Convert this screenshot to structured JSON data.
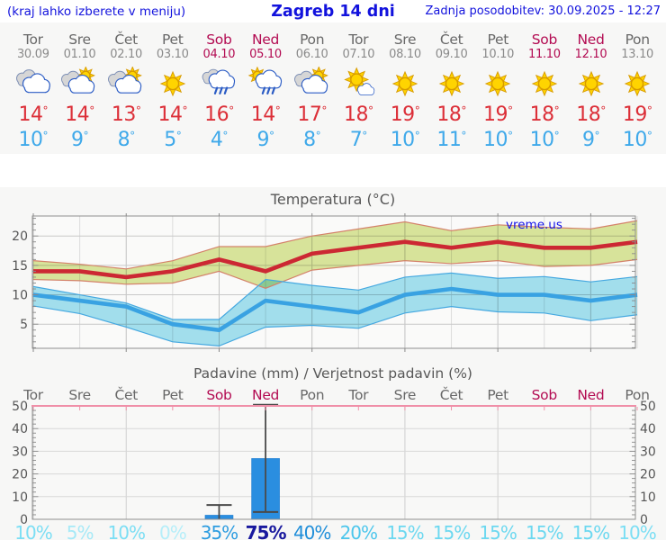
{
  "header": {
    "left_note": "(kraj lahko izberete v meniju)",
    "title": "Zagreb 14 dni",
    "updated": "Zadnja posodobitev: 30.09.2025 - 12:27"
  },
  "colors": {
    "header_blue": "#1212dd",
    "weekday_gray": "#686868",
    "weekend_crimson": "#b30b52",
    "high_temp_red": "#dc2f38",
    "low_temp_blue": "#3fa9ea",
    "bar_blue": "#2a8ee0",
    "max_line": "#cc2833",
    "max_band": "#dce89e",
    "max_band_edge": "#d4826a",
    "min_line": "#39a2e2",
    "min_band": "#a5e3f2",
    "min_band_edge": "#45a8e0",
    "precip_top_line_pink": "#f08fa8",
    "watermark_blue": "#1414e8"
  },
  "forecast": {
    "days": [
      {
        "name": "Tor",
        "date": "30.09",
        "icon": "cloudy",
        "hi": "14",
        "lo": "10",
        "weekend": false
      },
      {
        "name": "Sre",
        "date": "01.10",
        "icon": "partly-sunny",
        "hi": "14",
        "lo": "9",
        "weekend": false
      },
      {
        "name": "Čet",
        "date": "02.10",
        "icon": "partly-sunny",
        "hi": "13",
        "lo": "8",
        "weekend": false
      },
      {
        "name": "Pet",
        "date": "03.10",
        "icon": "sunny",
        "hi": "14",
        "lo": "5",
        "weekend": false
      },
      {
        "name": "Sob",
        "date": "04.10",
        "icon": "rain",
        "hi": "16",
        "lo": "4",
        "weekend": true
      },
      {
        "name": "Ned",
        "date": "05.10",
        "icon": "sun-rain",
        "hi": "14",
        "lo": "9",
        "weekend": true
      },
      {
        "name": "Pon",
        "date": "06.10",
        "icon": "partly-sunny",
        "hi": "17",
        "lo": "8",
        "weekend": false
      },
      {
        "name": "Tor",
        "date": "07.10",
        "icon": "sun-small-cloud",
        "hi": "18",
        "lo": "7",
        "weekend": false
      },
      {
        "name": "Sre",
        "date": "08.10",
        "icon": "sunny",
        "hi": "19",
        "lo": "10",
        "weekend": false
      },
      {
        "name": "Čet",
        "date": "09.10",
        "icon": "sunny",
        "hi": "18",
        "lo": "11",
        "weekend": false
      },
      {
        "name": "Pet",
        "date": "10.10",
        "icon": "sunny",
        "hi": "19",
        "lo": "10",
        "weekend": false
      },
      {
        "name": "Sob",
        "date": "11.10",
        "icon": "sunny",
        "hi": "18",
        "lo": "10",
        "weekend": true
      },
      {
        "name": "Ned",
        "date": "12.10",
        "icon": "sunny",
        "hi": "18",
        "lo": "9",
        "weekend": true
      },
      {
        "name": "Pon",
        "date": "13.10",
        "icon": "sunny",
        "hi": "19",
        "lo": "10",
        "weekend": false
      }
    ]
  },
  "chart_data": [
    {
      "type": "line",
      "title": "Temperatura (°C)",
      "watermark": "vreme.us",
      "categories": [
        "Tor",
        "Sre",
        "Čet",
        "Pet",
        "Sob",
        "Ned",
        "Pon",
        "Tor",
        "Sre",
        "Čet",
        "Pet",
        "Sob",
        "Ned",
        "Pon"
      ],
      "ylim": [
        0.9,
        23.4
      ],
      "yticks": [
        5,
        10,
        15,
        20
      ],
      "grid": true,
      "series": [
        {
          "name": "max_temp",
          "values": [
            14,
            14,
            13,
            14,
            16,
            14,
            17,
            18,
            19,
            18,
            19,
            18,
            18,
            19
          ]
        },
        {
          "name": "max_band_upper",
          "values": [
            15.8,
            15.2,
            14.4,
            15.8,
            18.2,
            18.2,
            20.0,
            21.2,
            22.4,
            20.9,
            21.9,
            21.5,
            21.2,
            22.6
          ]
        },
        {
          "name": "max_band_lower",
          "values": [
            12.6,
            12.4,
            11.8,
            12.0,
            14.0,
            11.1,
            14.2,
            15.0,
            15.8,
            15.3,
            15.8,
            14.8,
            15.0,
            16.0
          ]
        },
        {
          "name": "min_temp",
          "values": [
            10,
            9,
            8,
            5,
            4,
            9,
            8,
            7,
            10,
            11,
            10,
            10,
            9,
            10
          ]
        },
        {
          "name": "min_band_upper",
          "values": [
            11.4,
            10.0,
            8.6,
            5.8,
            5.8,
            12.6,
            11.6,
            10.8,
            13.0,
            13.7,
            12.8,
            13.1,
            12.2,
            13.1
          ]
        },
        {
          "name": "min_band_lower",
          "values": [
            8.1,
            6.8,
            4.5,
            2.0,
            1.3,
            4.5,
            4.8,
            4.3,
            6.9,
            8.0,
            7.1,
            6.9,
            5.6,
            6.6
          ]
        }
      ]
    },
    {
      "type": "bar",
      "title": "Padavine (mm) / Verjetnost padavin (%)",
      "categories": [
        "Tor",
        "Sre",
        "Čet",
        "Pet",
        "Sob",
        "Ned",
        "Pon",
        "Tor",
        "Sre",
        "Čet",
        "Pet",
        "Sob",
        "Ned",
        "Pon"
      ],
      "weekend": [
        false,
        false,
        false,
        false,
        true,
        true,
        false,
        false,
        false,
        false,
        false,
        true,
        true,
        false
      ],
      "ylim": [
        0,
        50
      ],
      "yticks": [
        0,
        10,
        20,
        30,
        40,
        50
      ],
      "grid": true,
      "precip_mm": [
        0,
        0,
        0,
        0,
        1.8,
        26.8,
        0,
        0,
        0,
        0,
        0,
        0,
        0,
        0
      ],
      "whiskers": [
        null,
        null,
        null,
        null,
        {
          "lo": 0,
          "hi": 6.3,
          "cap_lo": false,
          "cap_hi": true
        },
        {
          "lo": 3.2,
          "hi": 50.5,
          "cap_lo": true,
          "cap_hi": true
        },
        null,
        null,
        null,
        null,
        null,
        null,
        null,
        null
      ],
      "probability_pct": [
        "10%",
        "5%",
        "10%",
        "0%",
        "35%",
        "75%",
        "40%",
        "20%",
        "15%",
        "15%",
        "15%",
        "15%",
        "15%",
        "10%"
      ],
      "probability_colors": [
        "#7bdef4",
        "#a6e9f7",
        "#7bdef4",
        "#b5eef9",
        "#2c9ce0",
        "#19199e",
        "#1f8ed9",
        "#4cc6ec",
        "#6cd8f0",
        "#6cd8f0",
        "#6cd8f0",
        "#6cd8f0",
        "#6cd8f0",
        "#7bdef4"
      ]
    }
  ]
}
